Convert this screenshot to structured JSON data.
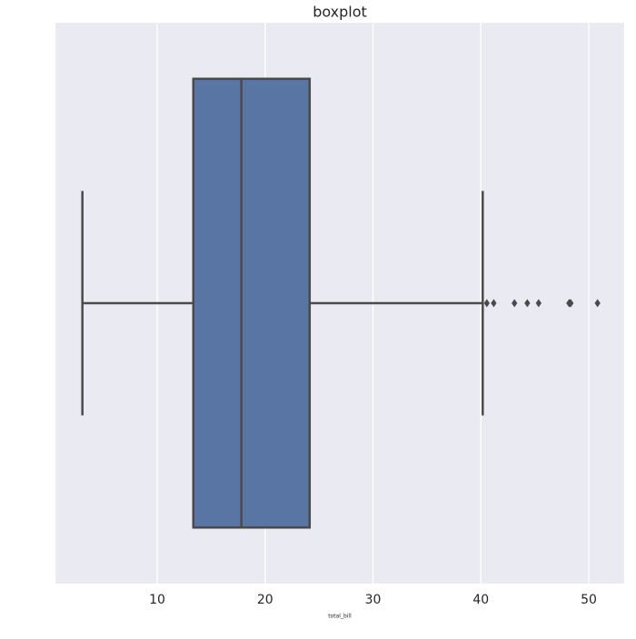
{
  "chart_data": {
    "type": "box",
    "title": "boxplot",
    "x_label": "total_bill",
    "boxes": [
      {
        "whislo": 3.07,
        "q1": 13.35,
        "med": 17.8,
        "q3": 24.13,
        "whishi": 40.17,
        "fliers": [
          40.55,
          41.19,
          43.11,
          44.3,
          45.35,
          48.17,
          48.27,
          48.33,
          50.81
        ]
      }
    ],
    "color": "#5875a4",
    "xlim": [
      0.57,
      53.28
    ],
    "xticks": [
      10,
      20,
      30,
      40,
      50
    ],
    "grid": true
  }
}
